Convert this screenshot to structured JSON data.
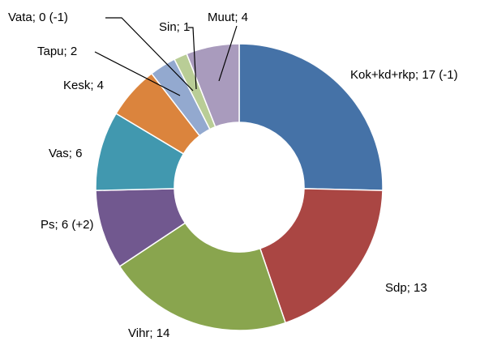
{
  "chart_data": {
    "type": "donut",
    "values": [
      17,
      13,
      14,
      6,
      6,
      4,
      2,
      0,
      1,
      4
    ],
    "value_labels": [
      "Kok+kd+rkp; 17 (-1)",
      "Sdp; 13",
      "Vihr; 14",
      "Ps; 6 (+2)",
      "Vas; 6",
      "Kesk; 4",
      "Tapu; 2",
      "Vata; 0 (-1)",
      "Sin; 1",
      "Muut; 4"
    ],
    "colors": [
      "#4572a7",
      "#aa4643",
      "#89a54e",
      "#71588f",
      "#4198af",
      "#db843d",
      "#93a9cf",
      "#d19392",
      "#b9cd96",
      "#a99bbd"
    ]
  }
}
